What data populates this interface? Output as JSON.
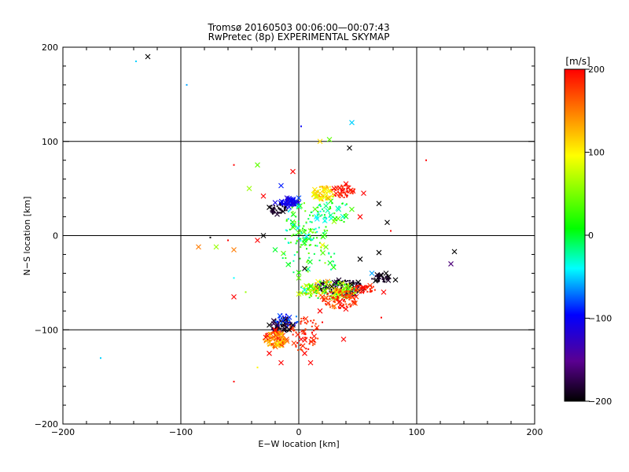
{
  "chart_data": {
    "type": "scatter",
    "title": "Tromsø 20160503 00:06:00—00:07:43",
    "subtitle": "RwPretec (8p) EXPERIMENTAL SKYMAP",
    "xlabel": "E−W location [km]",
    "ylabel": "N−S location [km]",
    "xlim": [
      -200,
      200
    ],
    "ylim": [
      -200,
      200
    ],
    "xticks": [
      -200,
      -100,
      0,
      100,
      200
    ],
    "yticks": [
      -200,
      -100,
      0,
      100,
      200
    ],
    "xtick_labels": [
      "−200",
      "−100",
      "0",
      "100",
      "200"
    ],
    "ytick_labels": [
      "−200",
      "−100",
      "0",
      "100",
      "200"
    ],
    "grid": true,
    "colorbar": {
      "label": "[m/s]",
      "range": [
        -200,
        200
      ],
      "ticks": [
        200,
        100,
        0,
        -100,
        -200
      ],
      "tick_labels": [
        "200",
        "100",
        "0",
        "−100",
        "−200"
      ],
      "colormap": [
        "#000000",
        "#5a0090",
        "#0000ff",
        "#00ffff",
        "#00ff00",
        "#ffff00",
        "#ff8000",
        "#ff0000"
      ]
    },
    "marker_styles": {
      "x": "cross (detection)",
      "dot": "small dot (detection)"
    },
    "points": [
      {
        "x": -128,
        "y": 190,
        "v": -200,
        "m": "x"
      },
      {
        "x": -138,
        "y": 185,
        "v": -50,
        "m": "dot"
      },
      {
        "x": -95,
        "y": 160,
        "v": -60,
        "m": "dot"
      },
      {
        "x": 2,
        "y": 116,
        "v": -100,
        "m": "dot"
      },
      {
        "x": 45,
        "y": 120,
        "v": -50,
        "m": "x"
      },
      {
        "x": 18,
        "y": 100,
        "v": 110,
        "m": "x"
      },
      {
        "x": 26,
        "y": 102,
        "v": 40,
        "m": "x"
      },
      {
        "x": 43,
        "y": 93,
        "v": -200,
        "m": "x"
      },
      {
        "x": 108,
        "y": 80,
        "v": 200,
        "m": "dot"
      },
      {
        "x": -35,
        "y": 75,
        "v": 40,
        "m": "x"
      },
      {
        "x": -55,
        "y": 75,
        "v": 200,
        "m": "dot"
      },
      {
        "x": -5,
        "y": 68,
        "v": 200,
        "m": "x"
      },
      {
        "x": -42,
        "y": 50,
        "v": 60,
        "m": "x"
      },
      {
        "x": -30,
        "y": 42,
        "v": 200,
        "m": "x"
      },
      {
        "x": 18,
        "y": 45,
        "v": 120,
        "m": "x"
      },
      {
        "x": 22,
        "y": 48,
        "v": 100,
        "m": "x"
      },
      {
        "x": 15,
        "y": 42,
        "v": 80,
        "m": "x"
      },
      {
        "x": 25,
        "y": 40,
        "v": 130,
        "m": "x"
      },
      {
        "x": 30,
        "y": 50,
        "v": 200,
        "m": "x"
      },
      {
        "x": 40,
        "y": 55,
        "v": 200,
        "m": "x"
      },
      {
        "x": 55,
        "y": 45,
        "v": 200,
        "m": "x"
      },
      {
        "x": -15,
        "y": 53,
        "v": -90,
        "m": "x"
      },
      {
        "x": -10,
        "y": 40,
        "v": -120,
        "m": "x"
      },
      {
        "x": -20,
        "y": 35,
        "v": -110,
        "m": "x"
      },
      {
        "x": -25,
        "y": 30,
        "v": -200,
        "m": "x"
      },
      {
        "x": 0,
        "y": 40,
        "v": -80,
        "m": "x"
      },
      {
        "x": 68,
        "y": 34,
        "v": -200,
        "m": "x"
      },
      {
        "x": 52,
        "y": 20,
        "v": 200,
        "m": "x"
      },
      {
        "x": 30,
        "y": 15,
        "v": 60,
        "m": "x"
      },
      {
        "x": 15,
        "y": 20,
        "v": -40,
        "m": "x"
      },
      {
        "x": 75,
        "y": 14,
        "v": -200,
        "m": "x"
      },
      {
        "x": 78,
        "y": 5,
        "v": 200,
        "m": "dot"
      },
      {
        "x": 10,
        "y": 5,
        "v": 50,
        "m": "x"
      },
      {
        "x": -30,
        "y": 0,
        "v": -200,
        "m": "x"
      },
      {
        "x": -60,
        "y": -5,
        "v": 200,
        "m": "dot"
      },
      {
        "x": -75,
        "y": -2,
        "v": -200,
        "m": "dot"
      },
      {
        "x": -85,
        "y": -12,
        "v": 150,
        "m": "x"
      },
      {
        "x": -70,
        "y": -12,
        "v": 60,
        "m": "x"
      },
      {
        "x": -55,
        "y": -15,
        "v": 150,
        "m": "x"
      },
      {
        "x": -35,
        "y": -5,
        "v": 200,
        "m": "x"
      },
      {
        "x": -20,
        "y": -15,
        "v": 0,
        "m": "x"
      },
      {
        "x": 5,
        "y": -5,
        "v": 20,
        "m": "x"
      },
      {
        "x": 20,
        "y": -10,
        "v": 100,
        "m": "x"
      },
      {
        "x": 52,
        "y": -25,
        "v": -200,
        "m": "x"
      },
      {
        "x": 68,
        "y": -18,
        "v": -200,
        "m": "x"
      },
      {
        "x": 132,
        "y": -17,
        "v": -200,
        "m": "x"
      },
      {
        "x": 129,
        "y": -30,
        "v": -160,
        "m": "x"
      },
      {
        "x": 5,
        "y": -35,
        "v": -200,
        "m": "x"
      },
      {
        "x": 0,
        "y": -45,
        "v": 40,
        "m": "x"
      },
      {
        "x": -55,
        "y": -45,
        "v": -40,
        "m": "dot"
      },
      {
        "x": -55,
        "y": -65,
        "v": 200,
        "m": "x"
      },
      {
        "x": -45,
        "y": -60,
        "v": 60,
        "m": "dot"
      },
      {
        "x": 62,
        "y": -40,
        "v": -60,
        "m": "x"
      },
      {
        "x": 70,
        "y": -42,
        "v": -200,
        "m": "x"
      },
      {
        "x": 74,
        "y": -40,
        "v": -200,
        "m": "x"
      },
      {
        "x": 82,
        "y": -47,
        "v": -200,
        "m": "x"
      },
      {
        "x": 65,
        "y": -48,
        "v": -200,
        "m": "x"
      },
      {
        "x": 72,
        "y": -60,
        "v": 200,
        "m": "x"
      },
      {
        "x": 55,
        "y": -55,
        "v": 200,
        "m": "x"
      },
      {
        "x": 50,
        "y": -58,
        "v": 150,
        "m": "x"
      },
      {
        "x": 45,
        "y": -52,
        "v": -200,
        "m": "x"
      },
      {
        "x": 38,
        "y": -56,
        "v": 60,
        "m": "x"
      },
      {
        "x": 32,
        "y": -60,
        "v": 100,
        "m": "x"
      },
      {
        "x": 28,
        "y": -54,
        "v": -200,
        "m": "x"
      },
      {
        "x": 22,
        "y": -58,
        "v": 30,
        "m": "x"
      },
      {
        "x": 15,
        "y": -56,
        "v": 120,
        "m": "x"
      },
      {
        "x": 10,
        "y": -60,
        "v": 60,
        "m": "x"
      },
      {
        "x": 5,
        "y": -58,
        "v": -40,
        "m": "x"
      },
      {
        "x": 0,
        "y": -62,
        "v": 80,
        "m": "x"
      },
      {
        "x": 35,
        "y": -70,
        "v": 200,
        "m": "x"
      },
      {
        "x": 40,
        "y": -78,
        "v": 200,
        "m": "x"
      },
      {
        "x": 30,
        "y": -75,
        "v": 150,
        "m": "x"
      },
      {
        "x": 20,
        "y": -65,
        "v": 180,
        "m": "x"
      },
      {
        "x": 18,
        "y": -80,
        "v": 200,
        "m": "x"
      },
      {
        "x": 20,
        "y": -92,
        "v": 200,
        "m": "dot"
      },
      {
        "x": 70,
        "y": -87,
        "v": 200,
        "m": "dot"
      },
      {
        "x": -20,
        "y": -100,
        "v": 200,
        "m": "x"
      },
      {
        "x": -15,
        "y": -105,
        "v": 120,
        "m": "x"
      },
      {
        "x": -22,
        "y": -110,
        "v": 140,
        "m": "x"
      },
      {
        "x": -28,
        "y": -108,
        "v": 200,
        "m": "x"
      },
      {
        "x": -18,
        "y": -115,
        "v": 100,
        "m": "x"
      },
      {
        "x": -10,
        "y": -112,
        "v": 150,
        "m": "x"
      },
      {
        "x": -5,
        "y": -95,
        "v": -200,
        "m": "x"
      },
      {
        "x": -8,
        "y": -100,
        "v": -200,
        "m": "x"
      },
      {
        "x": -25,
        "y": -95,
        "v": -200,
        "m": "x"
      },
      {
        "x": 2,
        "y": -110,
        "v": 200,
        "m": "x"
      },
      {
        "x": 5,
        "y": -125,
        "v": 200,
        "m": "x"
      },
      {
        "x": 10,
        "y": -135,
        "v": 200,
        "m": "x"
      },
      {
        "x": -25,
        "y": -125,
        "v": 200,
        "m": "x"
      },
      {
        "x": -15,
        "y": -135,
        "v": 200,
        "m": "x"
      },
      {
        "x": 38,
        "y": -110,
        "v": 200,
        "m": "x"
      },
      {
        "x": -35,
        "y": -140,
        "v": 100,
        "m": "dot"
      },
      {
        "x": -55,
        "y": -155,
        "v": 200,
        "m": "dot"
      },
      {
        "x": -168,
        "y": -130,
        "v": -50,
        "m": "dot"
      }
    ],
    "clusters": [
      {
        "cx": 22,
        "cy": 45,
        "rx": 10,
        "ry": 8,
        "n": 80,
        "vmin": 80,
        "vmax": 140,
        "m": "dot"
      },
      {
        "cx": 38,
        "cy": 48,
        "rx": 10,
        "ry": 8,
        "n": 45,
        "vmin": 180,
        "vmax": 200,
        "m": "dot"
      },
      {
        "cx": -8,
        "cy": 35,
        "rx": 8,
        "ry": 5,
        "n": 90,
        "vmin": -120,
        "vmax": -90,
        "m": "dot"
      },
      {
        "cx": -18,
        "cy": 28,
        "rx": 8,
        "ry": 6,
        "n": 40,
        "vmin": -200,
        "vmax": -180,
        "m": "dot"
      },
      {
        "cx": 5,
        "cy": 10,
        "rx": 20,
        "ry": 25,
        "n": 110,
        "vmin": -50,
        "vmax": 50,
        "m": "dot"
      },
      {
        "cx": 30,
        "cy": 25,
        "rx": 18,
        "ry": 12,
        "n": 40,
        "vmin": -40,
        "vmax": 40,
        "m": "dot"
      },
      {
        "cx": 10,
        "cy": -25,
        "rx": 25,
        "ry": 18,
        "n": 40,
        "vmin": -30,
        "vmax": 60,
        "m": "dot"
      },
      {
        "cx": 35,
        "cy": -55,
        "rx": 22,
        "ry": 8,
        "n": 160,
        "vmin": -200,
        "vmax": -170,
        "m": "dot"
      },
      {
        "cx": 25,
        "cy": -58,
        "rx": 25,
        "ry": 10,
        "n": 160,
        "vmin": -20,
        "vmax": 140,
        "m": "dot"
      },
      {
        "cx": 35,
        "cy": -68,
        "rx": 15,
        "ry": 10,
        "n": 100,
        "vmin": 160,
        "vmax": 200,
        "m": "dot"
      },
      {
        "cx": 70,
        "cy": -45,
        "rx": 8,
        "ry": 5,
        "n": 40,
        "vmin": -200,
        "vmax": -180,
        "m": "dot"
      },
      {
        "cx": 55,
        "cy": -57,
        "rx": 10,
        "ry": 5,
        "n": 40,
        "vmin": 180,
        "vmax": 200,
        "m": "dot"
      },
      {
        "cx": -15,
        "cy": -95,
        "rx": 10,
        "ry": 8,
        "n": 80,
        "vmin": -200,
        "vmax": -170,
        "m": "dot"
      },
      {
        "cx": -20,
        "cy": -110,
        "rx": 10,
        "ry": 9,
        "n": 120,
        "vmin": 100,
        "vmax": 200,
        "m": "dot"
      },
      {
        "cx": 5,
        "cy": -105,
        "rx": 12,
        "ry": 20,
        "n": 60,
        "vmin": 170,
        "vmax": 200,
        "m": "dot"
      },
      {
        "cx": -10,
        "cy": -90,
        "rx": 10,
        "ry": 8,
        "n": 30,
        "vmin": -120,
        "vmax": -60,
        "m": "dot"
      }
    ]
  }
}
